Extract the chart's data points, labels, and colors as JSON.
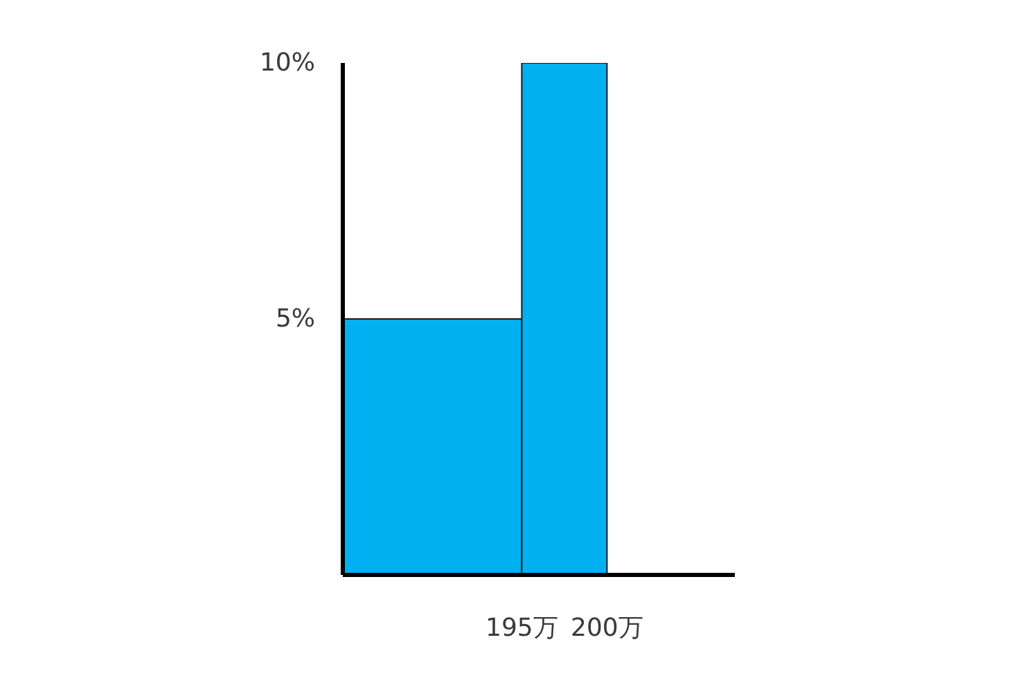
{
  "chart_data": {
    "type": "histogram",
    "bins": [
      184.5,
      195,
      200
    ],
    "values": [
      5,
      10
    ],
    "color": "#00b0f0",
    "xlim": [
      184.5,
      207.5
    ],
    "xticks": [
      {
        "value": 195,
        "label": "195万"
      },
      {
        "value": 200,
        "label": "200万"
      }
    ],
    "ylim": [
      0,
      10
    ],
    "yticks": [
      {
        "value": 5,
        "label": "5%"
      },
      {
        "value": 10,
        "label": "10%"
      }
    ]
  }
}
